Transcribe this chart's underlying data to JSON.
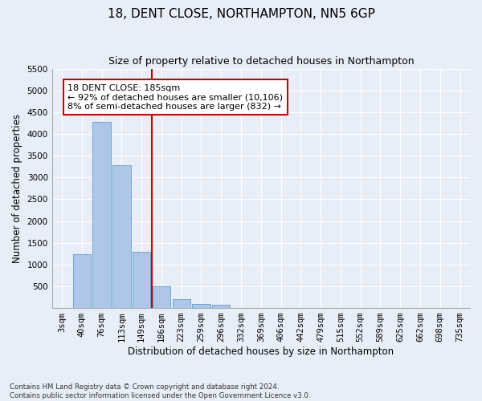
{
  "title": "18, DENT CLOSE, NORTHAMPTON, NN5 6GP",
  "subtitle": "Size of property relative to detached houses in Northampton",
  "xlabel": "Distribution of detached houses by size in Northampton",
  "ylabel": "Number of detached properties",
  "categories": [
    "3sqm",
    "40sqm",
    "76sqm",
    "113sqm",
    "149sqm",
    "186sqm",
    "223sqm",
    "259sqm",
    "296sqm",
    "332sqm",
    "369sqm",
    "406sqm",
    "442sqm",
    "479sqm",
    "515sqm",
    "552sqm",
    "589sqm",
    "625sqm",
    "662sqm",
    "698sqm",
    "735sqm"
  ],
  "values": [
    0,
    1230,
    4270,
    3280,
    1300,
    490,
    210,
    100,
    70,
    0,
    0,
    0,
    0,
    0,
    0,
    0,
    0,
    0,
    0,
    0,
    0
  ],
  "bar_color": "#aec6e8",
  "bar_edge_color": "#5a9fd4",
  "vline_color": "#cc0000",
  "annotation_text": "18 DENT CLOSE: 185sqm\n← 92% of detached houses are smaller (10,106)\n8% of semi-detached houses are larger (832) →",
  "annotation_box_color": "#cc0000",
  "ylim": [
    0,
    5500
  ],
  "yticks": [
    0,
    500,
    1000,
    1500,
    2000,
    2500,
    3000,
    3500,
    4000,
    4500,
    5000,
    5500
  ],
  "footer": "Contains HM Land Registry data © Crown copyright and database right 2024.\nContains public sector information licensed under the Open Government Licence v3.0.",
  "background_color": "#e8eef8",
  "grid_color": "#ffffff",
  "title_fontsize": 11,
  "subtitle_fontsize": 9,
  "tick_fontsize": 7.5
}
